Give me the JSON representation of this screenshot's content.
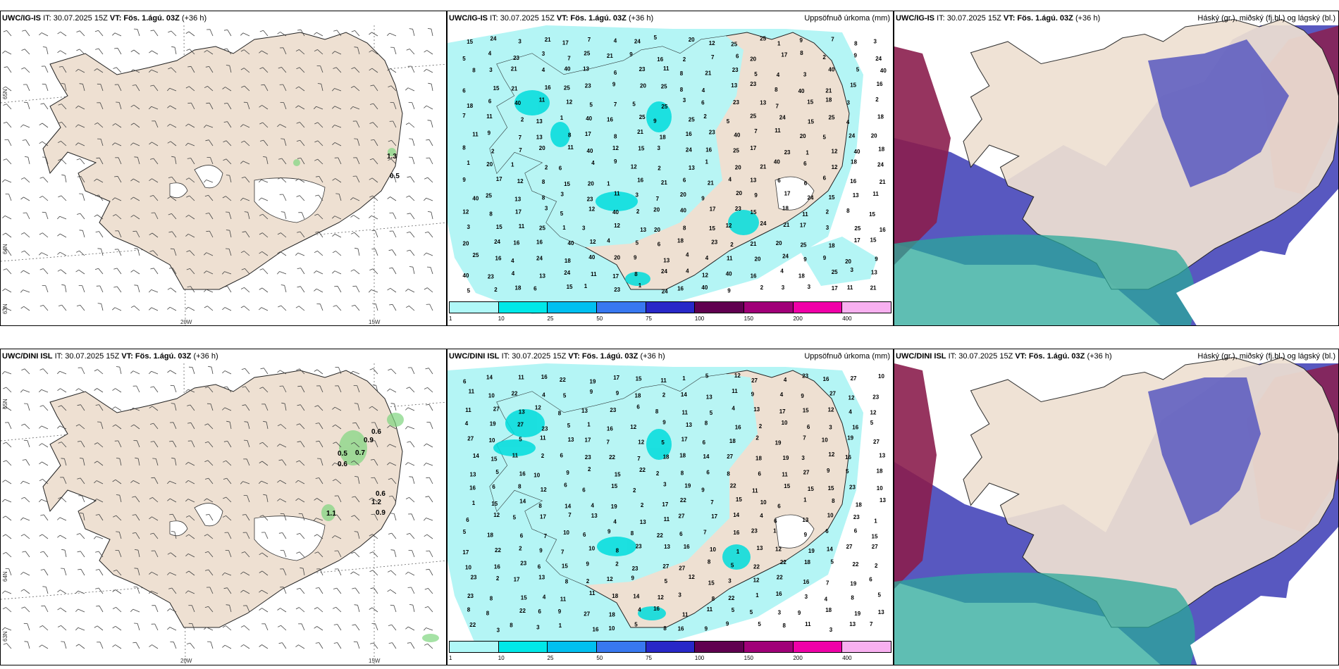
{
  "rows": [
    {
      "model": "UWC/IG-IS",
      "it": "IT: 30.07.2025 15Z",
      "vt": "VT: Fös. 1.ágú. 03Z",
      "lead": "(+36 h)",
      "wind_values": [
        "1.3",
        "0.5"
      ],
      "precip_values": [
        "24",
        "16",
        "18",
        "21",
        "15",
        "13",
        "17",
        "25",
        "23",
        "40",
        "20",
        "12",
        "11",
        "9",
        "8",
        "7",
        "6",
        "5",
        "4",
        "3",
        "2",
        "1"
      ]
    },
    {
      "model": "UWC/DINI ISL",
      "it": "IT: 30.07.2025 15Z",
      "vt": "VT: Fös. 1.ágú. 03Z",
      "lead": "(+36 h)",
      "wind_values": [
        "0.6",
        "0.9",
        "0.5",
        "0.7",
        "0.6",
        "1.1",
        "1.2",
        "0.6",
        "0.9"
      ],
      "precip_values": [
        "15",
        "17",
        "14",
        "13",
        "22",
        "18",
        "19",
        "27",
        "23",
        "16",
        "12",
        "11",
        "10",
        "9",
        "8",
        "7",
        "6",
        "5",
        "4",
        "3",
        "2",
        "1"
      ]
    }
  ],
  "precip_title": "Uppsöfnuð úrkoma (mm)",
  "cloud_title": "Háský (gr.), miðský (fj.bl.) og lágský (bl.)",
  "lat_labels": [
    "65N",
    "64N",
    "63N"
  ],
  "lon_labels": [
    "20W",
    "15W"
  ],
  "colorbar": {
    "ticks": [
      "1",
      "10",
      "25",
      "50",
      "75",
      "100",
      "150",
      "200",
      "400"
    ],
    "colors": [
      "#b0f8f8",
      "#00e8e8",
      "#00c0f0",
      "#3878f0",
      "#2828c8",
      "#600050",
      "#a00078",
      "#f000a8",
      "#f8b0f0"
    ]
  },
  "colors": {
    "land": "#eee0d2",
    "sea_precip": "#b4f5f5",
    "high_cloud": "#8b1e4e",
    "mid_cloud": "#5858c0",
    "low_cloud": "#2aa89a"
  }
}
